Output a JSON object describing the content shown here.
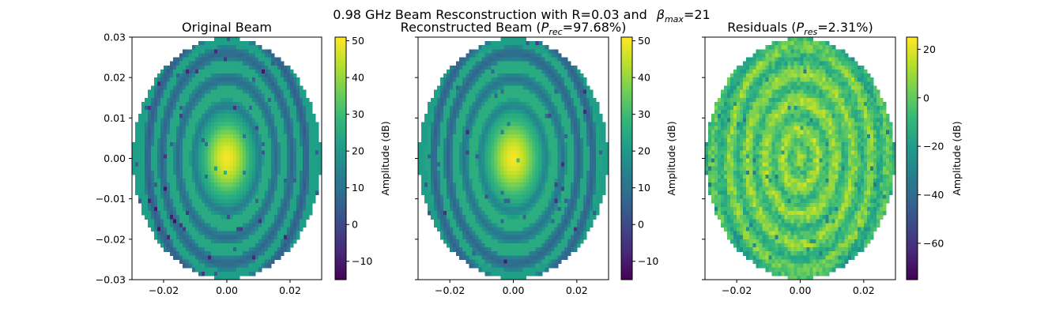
{
  "figure": {
    "suptitle": {
      "lead": "0.98 GHz Beam Resconstruction with R=0.03 and",
      "beta": "β",
      "beta_sub": "max",
      "tail": "=21"
    }
  },
  "colors": {
    "viridis": [
      "#440154",
      "#482878",
      "#3e4989",
      "#31688e",
      "#26828e",
      "#1f9e89",
      "#35b779",
      "#6ece58",
      "#b5de2b",
      "#fde725"
    ],
    "axis": "#000000",
    "background": "#ffffff"
  },
  "chart_data": [
    {
      "type": "heatmap",
      "title": {
        "prefix": "Original Beam",
        "sym": "",
        "sub": "",
        "suffix": ""
      },
      "xlim": [
        -0.03,
        0.03
      ],
      "ylim": [
        -0.03,
        0.03
      ],
      "xticks": [
        -0.02,
        0.0,
        0.02
      ],
      "xtick_labels": [
        "−0.02",
        "0.00",
        "0.02"
      ],
      "yticks": [
        -0.03,
        -0.02,
        -0.01,
        0.0,
        0.01,
        0.02,
        0.03
      ],
      "ytick_labels": [
        "−0.03",
        "−0.02",
        "−0.01",
        "0.00",
        "0.01",
        "0.02",
        "0.03"
      ],
      "show_ytick_labels": true,
      "colorbar": {
        "label": "Amplitude (dB)",
        "range": [
          -15,
          51
        ],
        "ticks": [
          -10,
          0,
          10,
          20,
          30,
          40,
          50
        ],
        "tick_labels": [
          "−10",
          "0",
          "10",
          "20",
          "30",
          "40",
          "50"
        ]
      },
      "beam": {
        "ellipse_semi_axes": [
          0.0298,
          0.0298
        ],
        "grid_cells": 60,
        "peak_db": 50,
        "edge_db": 20,
        "core_radius": 0.0105,
        "core_floor_db": 22,
        "ring_radii": [
          0.0118,
          0.0178,
          0.0236,
          0.0288
        ],
        "ring_db": [
          12,
          8,
          6,
          4
        ],
        "plateau_db": 26
      }
    },
    {
      "type": "heatmap",
      "title": {
        "prefix": "Reconstructed Beam (",
        "sym": "P",
        "sub": "rec",
        "suffix": "=97.68%)"
      },
      "xlim": [
        -0.03,
        0.03
      ],
      "ylim": [
        -0.03,
        0.03
      ],
      "xticks": [
        -0.02,
        0.0,
        0.02
      ],
      "xtick_labels": [
        "−0.02",
        "0.00",
        "0.02"
      ],
      "yticks": [
        -0.03,
        -0.02,
        -0.01,
        0.0,
        0.01,
        0.02,
        0.03
      ],
      "ytick_labels": [],
      "show_ytick_labels": false,
      "colorbar": {
        "label": "Amplitude (dB)",
        "range": [
          -15,
          51
        ],
        "ticks": [
          -10,
          0,
          10,
          20,
          30,
          40,
          50
        ],
        "tick_labels": [
          "−10",
          "0",
          "10",
          "20",
          "30",
          "40",
          "50"
        ]
      },
      "beam": {
        "ellipse_semi_axes": [
          0.0298,
          0.0298
        ],
        "grid_cells": 60,
        "peak_db": 50,
        "edge_db": 20,
        "core_radius": 0.0105,
        "core_floor_db": 24,
        "ring_radii": [
          0.0118,
          0.0178,
          0.0236,
          0.0288
        ],
        "ring_db": [
          14,
          10,
          6,
          5
        ],
        "plateau_db": 27
      }
    },
    {
      "type": "heatmap",
      "title": {
        "prefix": "Residuals (",
        "sym": "P",
        "sub": "res",
        "suffix": "=2.31%)"
      },
      "xlim": [
        -0.03,
        0.03
      ],
      "ylim": [
        -0.03,
        0.03
      ],
      "xticks": [
        -0.02,
        0.0,
        0.02
      ],
      "xtick_labels": [
        "−0.02",
        "0.00",
        "0.02"
      ],
      "yticks": [
        -0.03,
        -0.02,
        -0.01,
        0.0,
        0.01,
        0.02,
        0.03
      ],
      "ytick_labels": [],
      "show_ytick_labels": false,
      "colorbar": {
        "label": "Amplitude (dB)",
        "range": [
          -75,
          25
        ],
        "ticks": [
          -60,
          -40,
          -20,
          0,
          20
        ],
        "tick_labels": [
          "−60",
          "−40",
          "−20",
          "0",
          "20"
        ]
      },
      "residual": {
        "ellipse_semi_axes": [
          0.0298,
          0.0298
        ],
        "grid_cells": 60,
        "base_db": 4,
        "ring_spacing": 0.0032,
        "ring_amplitude_db": 10,
        "noise_db": 8,
        "outlier_db": -35
      }
    }
  ]
}
